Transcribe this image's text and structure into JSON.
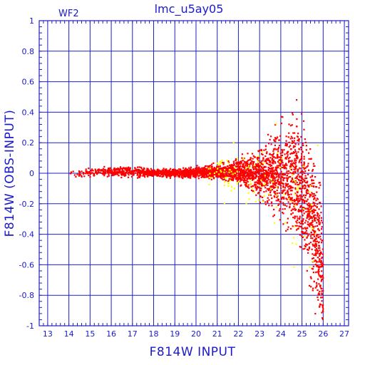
{
  "chart_data": {
    "type": "scatter",
    "title": "lmc_u5ay05",
    "panel_label": "WF2",
    "xlabel": "F814W INPUT",
    "ylabel": "F814W (OBS-INPUT)",
    "xlim": [
      12.6,
      27.2
    ],
    "ylim": [
      -1.0,
      1.0
    ],
    "xticks": [
      13,
      14,
      15,
      16,
      17,
      18,
      19,
      20,
      21,
      22,
      23,
      24,
      25,
      26,
      27
    ],
    "yticks": [
      -1,
      -0.8,
      -0.6,
      -0.4,
      -0.2,
      0,
      0.2,
      0.4,
      0.6,
      0.8,
      1
    ],
    "ytick_labels": [
      "-1",
      "-0.8",
      "-0.6",
      "-0.4",
      "-0.2",
      "0",
      "0.2",
      "0.4",
      "0.6",
      "0.8",
      "1"
    ],
    "grid": true,
    "series": [
      {
        "color": "#ff0000",
        "trend": [
          {
            "x": 14.0,
            "y_center": 0.0,
            "y_spread": 0.012
          },
          {
            "x": 15.0,
            "y_center": 0.005,
            "y_spread": 0.012
          },
          {
            "x": 16.0,
            "y_center": 0.01,
            "y_spread": 0.015
          },
          {
            "x": 17.0,
            "y_center": 0.01,
            "y_spread": 0.018
          },
          {
            "x": 18.0,
            "y_center": 0.0,
            "y_spread": 0.012
          },
          {
            "x": 19.0,
            "y_center": 0.0,
            "y_spread": 0.012
          },
          {
            "x": 20.0,
            "y_center": 0.005,
            "y_spread": 0.015
          },
          {
            "x": 21.0,
            "y_center": 0.01,
            "y_spread": 0.02
          },
          {
            "x": 22.0,
            "y_center": 0.01,
            "y_spread": 0.035
          },
          {
            "x": 23.0,
            "y_center": 0.0,
            "y_spread": 0.07
          },
          {
            "x": 24.0,
            "y_center": -0.01,
            "y_spread": 0.13
          },
          {
            "x": 24.7,
            "y_center": 0.0,
            "y_spread": 0.18
          },
          {
            "x": 25.2,
            "y_center": -0.15,
            "y_spread": 0.2
          },
          {
            "x": 25.7,
            "y_center": -0.4,
            "y_spread": 0.22
          },
          {
            "x": 26.0,
            "y_center": -0.7,
            "y_spread": 0.2
          }
        ]
      },
      {
        "color": "#ffff00",
        "trend": [
          {
            "x": 20.5,
            "y_center": 0.0,
            "y_spread": 0.05
          },
          {
            "x": 22.5,
            "y_center": 0.0,
            "y_spread": 0.1
          },
          {
            "x": 24.0,
            "y_center": -0.1,
            "y_spread": 0.2
          },
          {
            "x": 25.0,
            "y_center": -0.2,
            "y_spread": 0.25
          },
          {
            "x": 25.8,
            "y_center": -0.4,
            "y_spread": 0.25
          }
        ]
      }
    ]
  }
}
